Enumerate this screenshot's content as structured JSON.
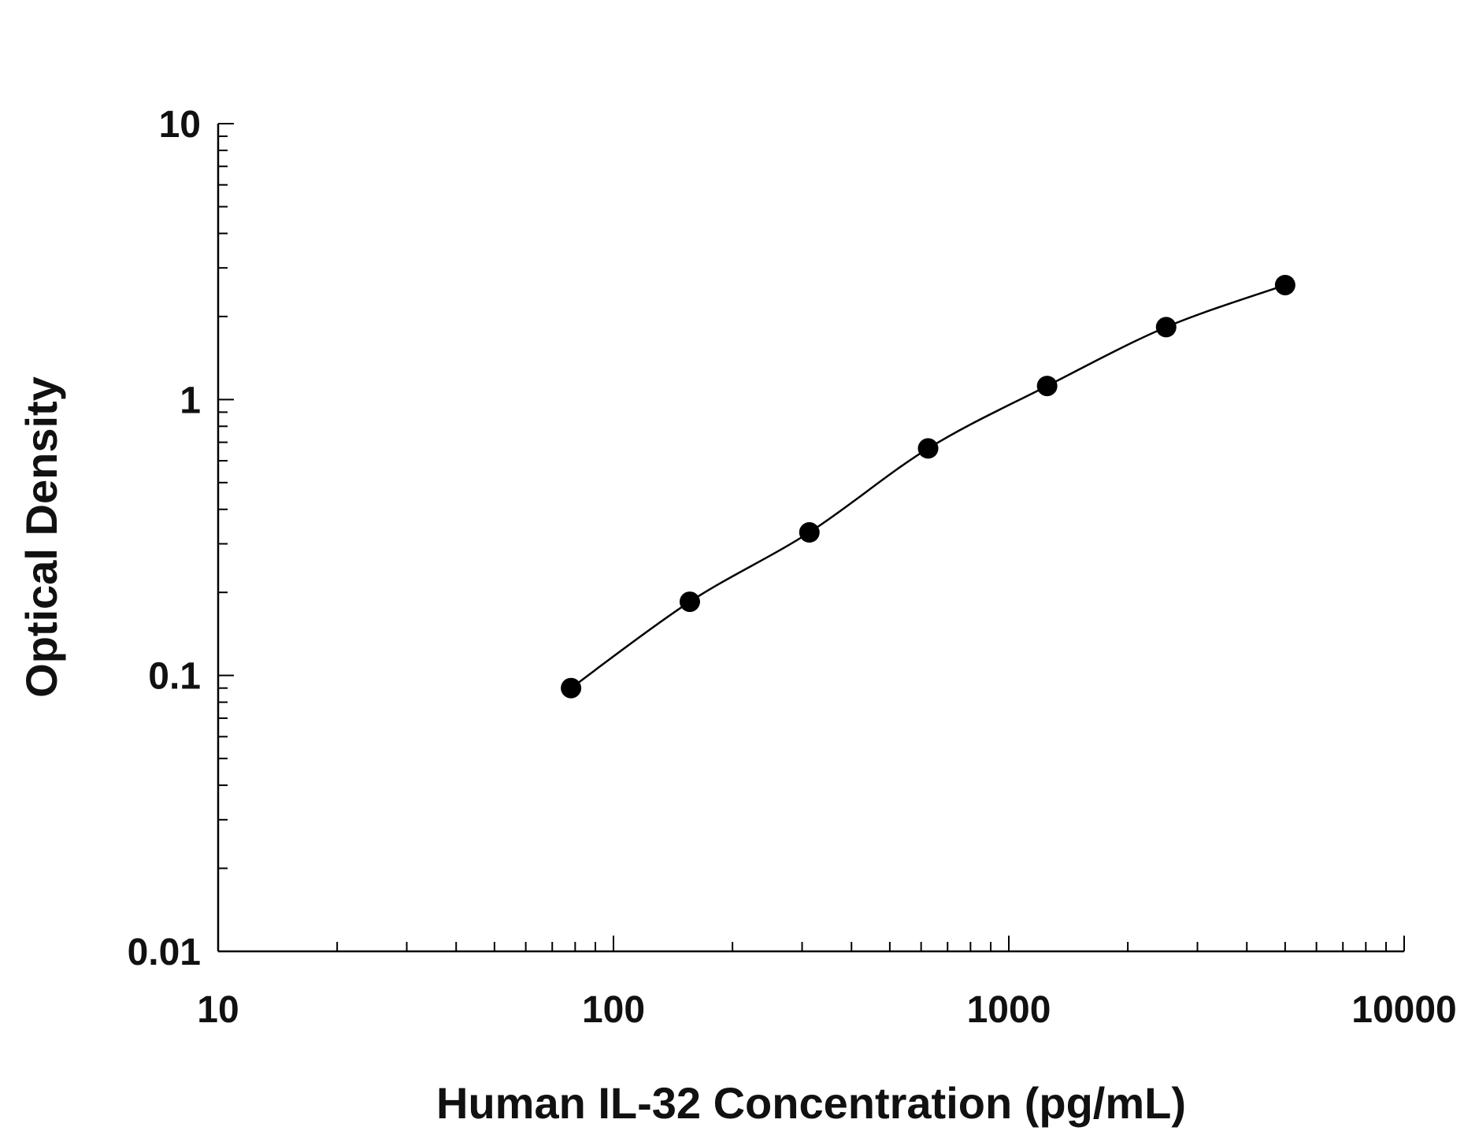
{
  "chart_data": {
    "type": "scatter",
    "title": "",
    "xlabel": "Human IL-32 Concentration (pg/mL)",
    "ylabel": "Optical Density",
    "x_scale": "log",
    "y_scale": "log",
    "xlim": [
      10,
      10000
    ],
    "ylim": [
      0.01,
      10
    ],
    "x_ticks": [
      {
        "value": 10,
        "label": "10"
      },
      {
        "value": 100,
        "label": "100"
      },
      {
        "value": 1000,
        "label": "1000"
      },
      {
        "value": 10000,
        "label": "10000"
      }
    ],
    "y_ticks": [
      {
        "value": 0.01,
        "label": "0.01"
      },
      {
        "value": 0.1,
        "label": "0.1"
      },
      {
        "value": 1,
        "label": "1"
      },
      {
        "value": 10,
        "label": "10"
      }
    ],
    "grid": false,
    "legend": "none",
    "series": [
      {
        "x": [
          78.1,
          156,
          313,
          625,
          1250,
          2500,
          5000
        ],
        "y": [
          0.09,
          0.185,
          0.33,
          0.665,
          1.12,
          1.83,
          2.6
        ],
        "fit_curve": true,
        "color": "#000000"
      }
    ]
  }
}
